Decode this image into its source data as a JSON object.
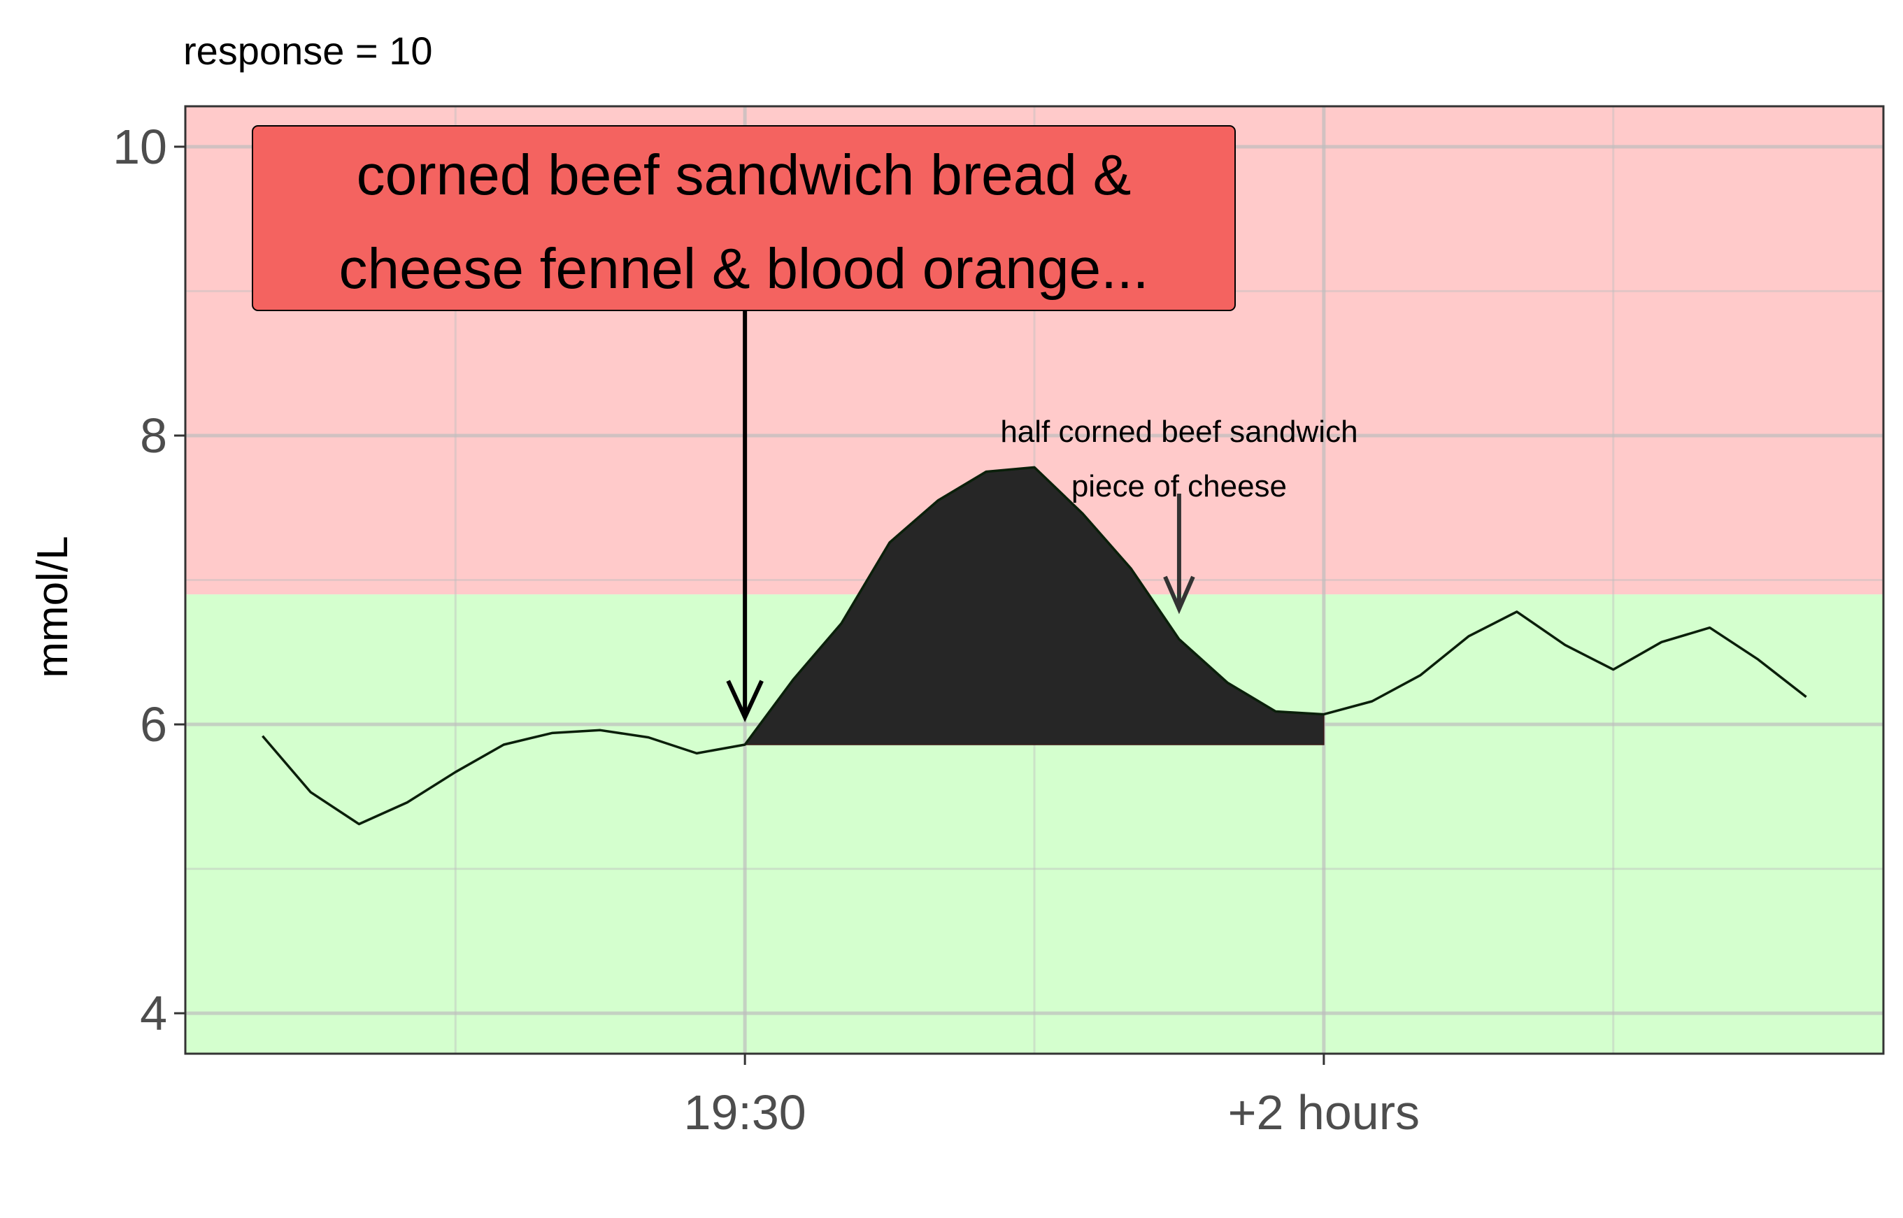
{
  "chart_data": {
    "type": "line",
    "title": "response = 10",
    "ylabel": "mmol/L",
    "xlabel": "",
    "ylim": [
      3.72,
      10.28
    ],
    "y_ticks": [
      4,
      6,
      8,
      10
    ],
    "x_tick_labels": [
      {
        "x": 0,
        "label": "19:30"
      },
      {
        "x": 120,
        "label": "+2 hours"
      }
    ],
    "xlim": [
      -116,
      236
    ],
    "x_units": "minutes after 19:30",
    "zones": [
      {
        "name": "high",
        "from": 6.9,
        "to": 10.28,
        "color": "#FFCACA"
      },
      {
        "name": "normal",
        "from": 3.72,
        "to": 6.9,
        "color": "#D4FFCE"
      }
    ],
    "series": [
      {
        "x": [
          -100,
          -90,
          -80,
          -70,
          -60,
          -50,
          -40,
          -30,
          -20,
          -10,
          0,
          10,
          20,
          30,
          40,
          50,
          60,
          70,
          80,
          90,
          100,
          110,
          120,
          130,
          140,
          150,
          160,
          170,
          180,
          190,
          200,
          210,
          220
        ],
        "y": [
          5.92,
          5.53,
          5.31,
          5.46,
          5.67,
          5.86,
          5.94,
          5.96,
          5.91,
          5.8,
          5.86,
          6.31,
          6.7,
          7.26,
          7.55,
          7.75,
          7.78,
          7.46,
          7.08,
          6.59,
          6.29,
          6.09,
          6.07,
          6.16,
          6.34,
          6.61,
          6.78,
          6.55,
          6.38,
          6.57,
          6.67,
          6.45,
          6.19
        ],
        "color": "#000000"
      }
    ],
    "shaded_response": {
      "x_start": 0,
      "x_end": 120,
      "baseline": 5.86,
      "color": "#262626"
    },
    "annotations": [
      {
        "label_lines": [
          "corned beef sandwich bread &",
          "cheese fennel & blood orange..."
        ],
        "x": 0,
        "arrow_to_y": 6.05,
        "box_color": "#F46360"
      },
      {
        "label_lines": [
          "half corned beef sandwich",
          "piece of cheese"
        ],
        "x": 90,
        "arrow_to_y": 6.8
      }
    ]
  }
}
